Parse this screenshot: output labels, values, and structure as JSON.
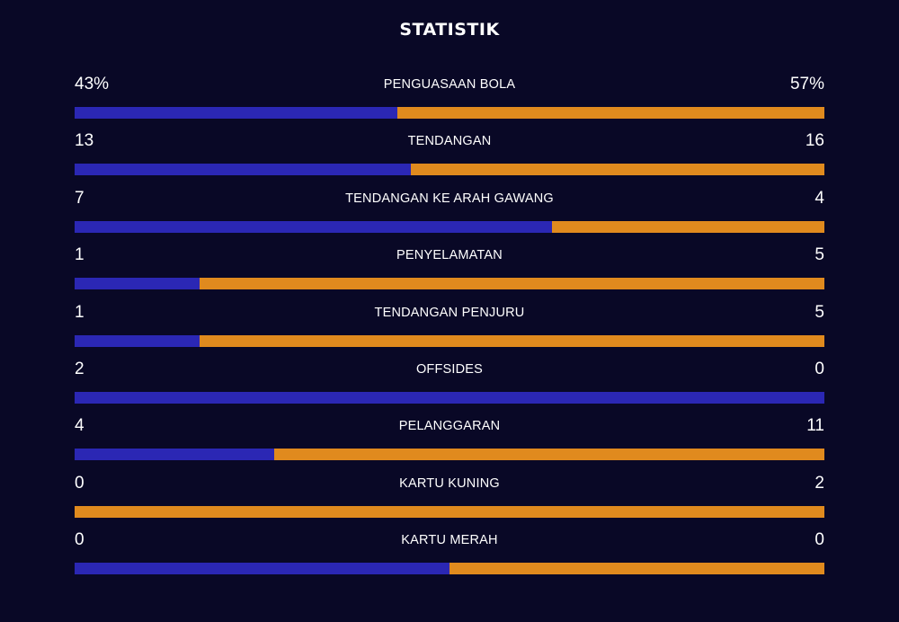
{
  "title": "STATISTIK",
  "colors": {
    "background": "#090826",
    "home": "#2b27b4",
    "away": "#e08a1e",
    "text": "#ffffff"
  },
  "stats": [
    {
      "label": "PENGUASAAN BOLA",
      "home": "43%",
      "away": "57%",
      "home_share": 0.43
    },
    {
      "label": "TENDANGAN",
      "home": "13",
      "away": "16",
      "home_share": 0.4483
    },
    {
      "label": "TENDANGAN KE ARAH GAWANG",
      "home": "7",
      "away": "4",
      "home_share": 0.6364
    },
    {
      "label": "PENYELAMATAN",
      "home": "1",
      "away": "5",
      "home_share": 0.1667
    },
    {
      "label": "TENDANGAN PENJURU",
      "home": "1",
      "away": "5",
      "home_share": 0.1667
    },
    {
      "label": "OFFSIDES",
      "home": "2",
      "away": "0",
      "home_share": 1.0
    },
    {
      "label": "PELANGGARAN",
      "home": "4",
      "away": "11",
      "home_share": 0.2667
    },
    {
      "label": "KARTU KUNING",
      "home": "0",
      "away": "2",
      "home_share": 0.0
    },
    {
      "label": "KARTU MERAH",
      "home": "0",
      "away": "0",
      "home_share": 0.5
    }
  ]
}
